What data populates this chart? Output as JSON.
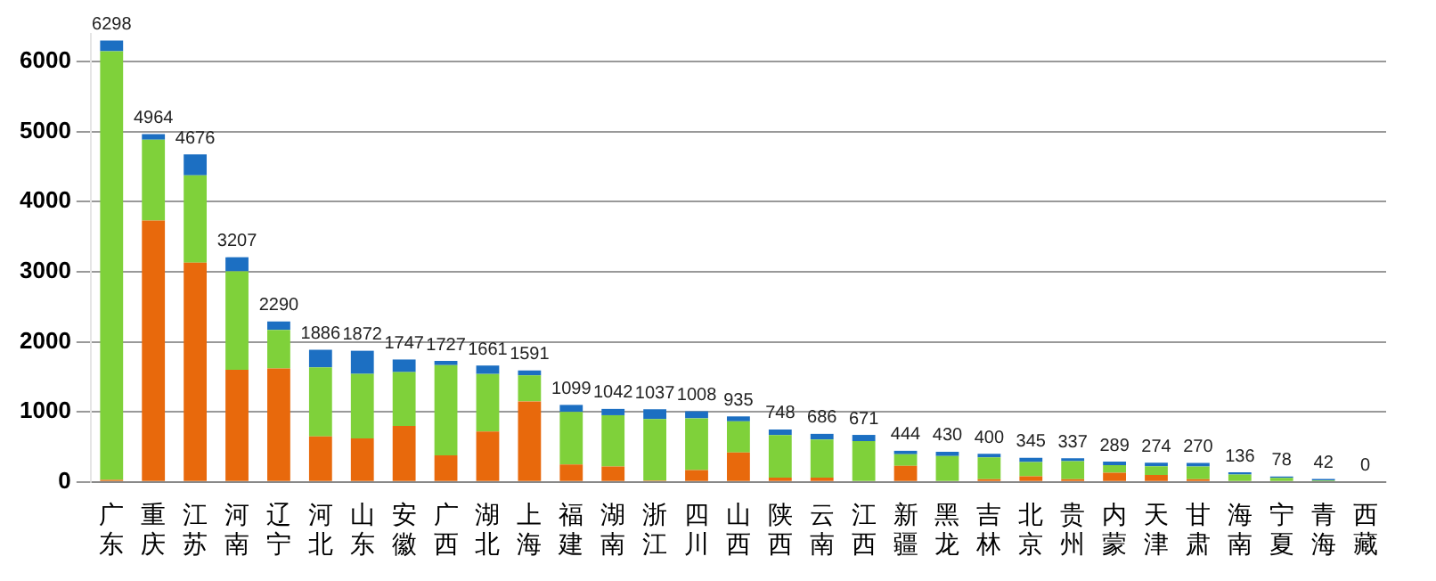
{
  "chart_data": {
    "type": "bar",
    "stacked": true,
    "categories": [
      "广东",
      "重庆",
      "江苏",
      "河南",
      "辽宁",
      "河北",
      "山东",
      "安徽",
      "广西",
      "湖北",
      "上海",
      "福建",
      "湖南",
      "浙江",
      "四川",
      "山西",
      "陕西",
      "云南",
      "江西",
      "新疆",
      "黑龙",
      "吉林",
      "北京",
      "贵州",
      "内蒙",
      "天津",
      "甘肃",
      "海南",
      "宁夏",
      "青海",
      "西藏"
    ],
    "series": [
      {
        "color": "#e8690c",
        "values": [
          30,
          3730,
          3130,
          1600,
          1620,
          650,
          620,
          800,
          380,
          720,
          1150,
          250,
          220,
          20,
          170,
          420,
          60,
          60,
          null,
          230,
          null,
          40,
          80,
          40,
          130,
          100,
          40,
          null,
          null,
          0,
          0
        ]
      },
      {
        "color": "#7fd13a",
        "values": [
          6118,
          1154,
          1246,
          1407,
          550,
          986,
          922,
          767,
          1287,
          821,
          371,
          749,
          732,
          877,
          738,
          445,
          608,
          546,
          581,
          164,
          370,
          310,
          205,
          257,
          109,
          124,
          180,
          106,
          58,
          22,
          0
        ]
      },
      {
        "color": "#1c6fc2",
        "values": [
          150,
          80,
          300,
          200,
          120,
          250,
          330,
          180,
          60,
          120,
          70,
          100,
          90,
          140,
          100,
          70,
          80,
          80,
          90,
          50,
          60,
          50,
          60,
          40,
          50,
          50,
          50,
          30,
          20,
          20,
          0
        ]
      }
    ],
    "totals": [
      "6298",
      "4964",
      "4676",
      "3207",
      "2290",
      "1886",
      "1872",
      "1747",
      "1727",
      "1661",
      "1591",
      "1099",
      "1042",
      "1037",
      "1008",
      "935",
      "748",
      "686",
      "671",
      "444",
      "430",
      "400",
      "345",
      "337",
      "289",
      "274",
      "270",
      "136",
      "78",
      "42",
      "0"
    ],
    "ylim": [
      0,
      6400
    ],
    "yticks": [
      0,
      1000,
      2000,
      3000,
      4000,
      5000,
      6000
    ],
    "grid": "y",
    "legend": false
  }
}
